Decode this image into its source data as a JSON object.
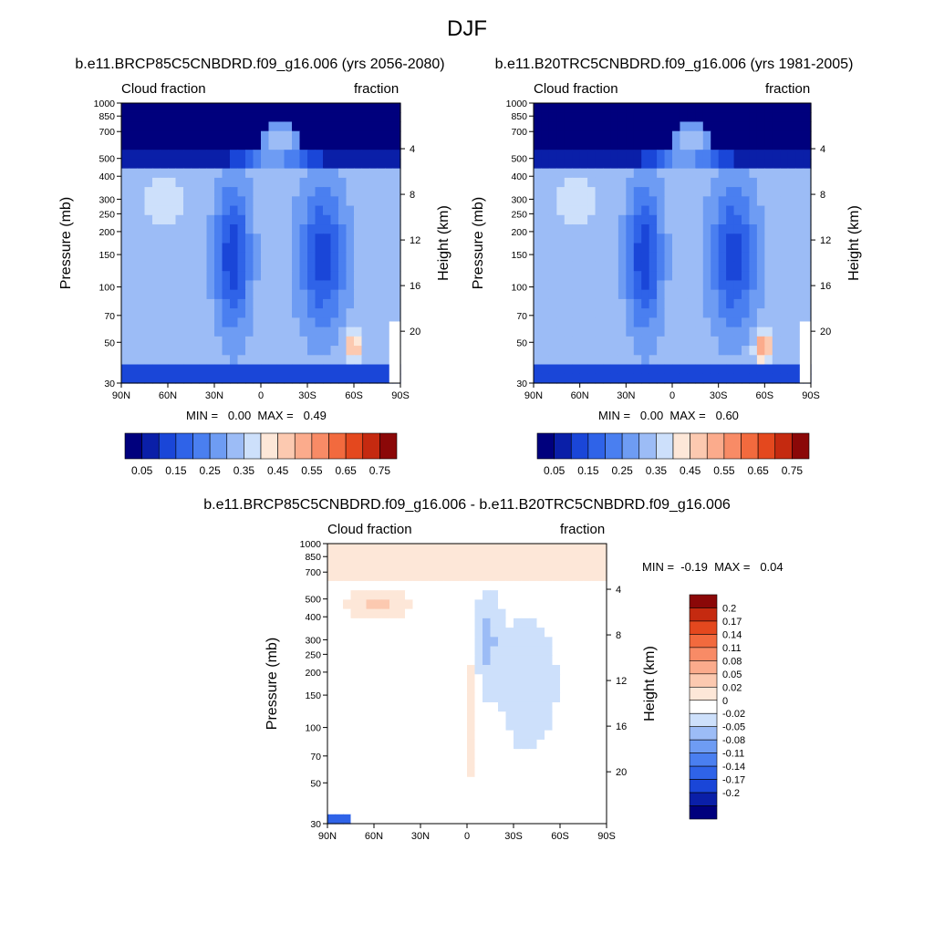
{
  "figure_title": "DJF",
  "colors": {
    "abs_scale": [
      "#00007d",
      "#0a1fa8",
      "#1a46d8",
      "#2f63e8",
      "#4a7ff0",
      "#6e9cf3",
      "#9cbcf6",
      "#cde0fb",
      "#fde7d8",
      "#fcc9b0",
      "#fbab8c",
      "#f88b66",
      "#f26a3e",
      "#e4481e",
      "#c52a10",
      "#8b0808"
    ],
    "diff_scale": [
      "#00007d",
      "#0a1fa8",
      "#1a46d8",
      "#2f63e8",
      "#4a7ff0",
      "#6e9cf3",
      "#9cbcf6",
      "#cde0fb",
      "#ffffff",
      "#fde7d8",
      "#fcc9b0",
      "#fbab8c",
      "#f88b66",
      "#f26a3e",
      "#e4481e",
      "#c52a10",
      "#8b0808"
    ]
  },
  "chart_data": [
    {
      "type": "heatmap",
      "title": "b.e11.BRCP85C5CNBDRD.f09_g16.006 (yrs 2056-2080)",
      "left_label": "Cloud fraction",
      "right_label": "fraction",
      "xlabel": "",
      "ylabel": "Pressure (mb)",
      "y2label": "Height (km)",
      "x_ticks": [
        "90N",
        "60N",
        "30N",
        "0",
        "30S",
        "60S",
        "90S"
      ],
      "y_ticks": [
        "30",
        "50",
        "70",
        "100",
        "150",
        "200",
        "250",
        "300",
        "400",
        "500",
        "700",
        "850",
        "1000"
      ],
      "y_tick_values": [
        30,
        50,
        70,
        100,
        150,
        200,
        250,
        300,
        400,
        500,
        700,
        850,
        1000
      ],
      "y2_ticks": [
        "20",
        "16",
        "12",
        "8",
        "4"
      ],
      "y2_tick_values": [
        20,
        16,
        12,
        8,
        4
      ],
      "ylim": [
        1000,
        30
      ],
      "xlim": [
        90,
        -90
      ],
      "min_label": "MIN =   0.00  MAX =   0.49",
      "min": 0.0,
      "max": 0.49,
      "colorbar_labels": [
        "0.05",
        "0.15",
        "0.25",
        "0.35",
        "0.45",
        "0.55",
        "0.65",
        "0.75"
      ],
      "colorbar_levels": [
        0.05,
        0.1,
        0.15,
        0.2,
        0.25,
        0.3,
        0.35,
        0.4,
        0.45,
        0.5,
        0.55,
        0.6,
        0.65,
        0.7,
        0.75
      ]
    },
    {
      "type": "heatmap",
      "title": "b.e11.B20TRC5CNBDRD.f09_g16.006 (yrs 1981-2005)",
      "left_label": "Cloud fraction",
      "right_label": "fraction",
      "xlabel": "",
      "ylabel": "Pressure (mb)",
      "y2label": "Height (km)",
      "x_ticks": [
        "90N",
        "60N",
        "30N",
        "0",
        "30S",
        "60S",
        "90S"
      ],
      "y_ticks": [
        "30",
        "50",
        "70",
        "100",
        "150",
        "200",
        "250",
        "300",
        "400",
        "500",
        "700",
        "850",
        "1000"
      ],
      "y_tick_values": [
        30,
        50,
        70,
        100,
        150,
        200,
        250,
        300,
        400,
        500,
        700,
        850,
        1000
      ],
      "y2_ticks": [
        "20",
        "16",
        "12",
        "8",
        "4"
      ],
      "y2_tick_values": [
        20,
        16,
        12,
        8,
        4
      ],
      "ylim": [
        1000,
        30
      ],
      "xlim": [
        90,
        -90
      ],
      "min_label": "MIN =   0.00  MAX =   0.60",
      "min": 0.0,
      "max": 0.6,
      "colorbar_labels": [
        "0.05",
        "0.15",
        "0.25",
        "0.35",
        "0.45",
        "0.55",
        "0.65",
        "0.75"
      ],
      "colorbar_levels": [
        0.05,
        0.1,
        0.15,
        0.2,
        0.25,
        0.3,
        0.35,
        0.4,
        0.45,
        0.5,
        0.55,
        0.6,
        0.65,
        0.7,
        0.75
      ]
    },
    {
      "type": "heatmap",
      "title": "b.e11.BRCP85C5CNBDRD.f09_g16.006 - b.e11.B20TRC5CNBDRD.f09_g16.006",
      "left_label": "Cloud fraction",
      "right_label": "fraction",
      "xlabel": "",
      "ylabel": "Pressure (mb)",
      "y2label": "Height (km)",
      "x_ticks": [
        "90N",
        "60N",
        "30N",
        "0",
        "30S",
        "60S",
        "90S"
      ],
      "y_ticks": [
        "30",
        "50",
        "70",
        "100",
        "150",
        "200",
        "250",
        "300",
        "400",
        "500",
        "700",
        "850",
        "1000"
      ],
      "y_tick_values": [
        30,
        50,
        70,
        100,
        150,
        200,
        250,
        300,
        400,
        500,
        700,
        850,
        1000
      ],
      "y2_ticks": [
        "20",
        "16",
        "12",
        "8",
        "4"
      ],
      "y2_tick_values": [
        20,
        16,
        12,
        8,
        4
      ],
      "ylim": [
        1000,
        30
      ],
      "xlim": [
        90,
        -90
      ],
      "min_label": "MIN =  -0.19  MAX =   0.04",
      "min": -0.19,
      "max": 0.04,
      "colorbar_labels": [
        "0.2",
        "0.17",
        "0.14",
        "0.11",
        "0.08",
        "0.05",
        "0.02",
        "0",
        "-0.02",
        "-0.05",
        "-0.08",
        "-0.11",
        "-0.14",
        "-0.17",
        "-0.2"
      ],
      "colorbar_levels": [
        0.2,
        0.17,
        0.14,
        0.11,
        0.08,
        0.05,
        0.02,
        0,
        -0.02,
        -0.05,
        -0.08,
        -0.11,
        -0.14,
        -0.17,
        -0.2
      ]
    }
  ]
}
